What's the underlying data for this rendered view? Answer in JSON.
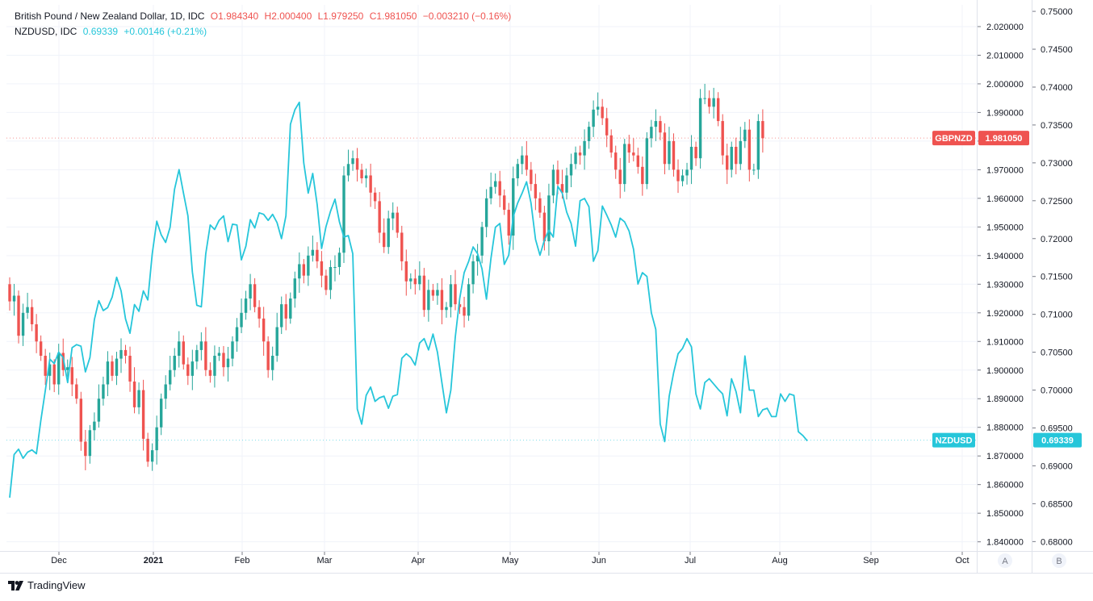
{
  "legend": {
    "line1": {
      "title": "British Pound / New Zealand Dollar, 1D, IDC",
      "o_label": "O",
      "o_value": "1.984340",
      "h_label": "H",
      "h_value": "2.000400",
      "l_label": "L",
      "l_value": "1.979250",
      "c_label": "C",
      "c_value": "1.981050",
      "change": "−0.003210 (−0.16%)"
    },
    "line2": {
      "title": "NZDUSD, IDC",
      "value": "0.69339",
      "change": "+0.00146 (+0.21%)"
    }
  },
  "brand": {
    "name": "TradingView"
  },
  "colors": {
    "up": "#26a69a",
    "down": "#ef5350",
    "line": "#26c6da",
    "grid": "#f0f3fa",
    "axis_text": "#131722"
  },
  "chart_data": {
    "type": "line",
    "title": "British Pound / New Zealand Dollar, 1D, IDC",
    "x_labels": [
      "Dec",
      "2021",
      "Feb",
      "Mar",
      "Apr",
      "May",
      "Jun",
      "Jul",
      "Aug",
      "Sep",
      "Oct"
    ],
    "axes": {
      "A": {
        "ticks": [
          "2.020000",
          "2.010000",
          "2.000000",
          "1.990000",
          "1.980000",
          "1.970000",
          "1.960000",
          "1.950000",
          "1.940000",
          "1.930000",
          "1.920000",
          "1.910000",
          "1.900000",
          "1.890000",
          "1.880000",
          "1.870000",
          "1.860000",
          "1.850000",
          "1.840000"
        ],
        "ylim": [
          1.8368,
          2.0276
        ],
        "badge": "A"
      },
      "B": {
        "ticks": [
          "0.75000",
          "0.74500",
          "0.74000",
          "0.73500",
          "0.73000",
          "0.72500",
          "0.72000",
          "0.71500",
          "0.71000",
          "0.70500",
          "0.70000",
          "0.69500",
          "0.69000",
          "0.68500",
          "0.68000"
        ],
        "ylim": [
          0.67876,
          0.75086
        ],
        "badge": "B"
      }
    },
    "series": [
      {
        "name": "GBPNZD",
        "kind": "candlestick",
        "axis": "A",
        "last_label": "GBPNZD",
        "last_value": "1.981050",
        "closes": [
          1.924,
          1.926,
          1.912,
          1.92,
          1.922,
          1.916,
          1.91,
          1.905,
          1.898,
          1.902,
          1.895,
          1.906,
          1.9,
          1.901,
          1.895,
          1.89,
          1.875,
          1.87,
          1.879,
          1.882,
          1.89,
          1.895,
          1.903,
          1.898,
          1.904,
          1.907,
          1.905,
          1.896,
          1.887,
          1.893,
          1.876,
          1.868,
          1.872,
          1.88,
          1.89,
          1.895,
          1.9,
          1.905,
          1.91,
          1.902,
          1.898,
          1.903,
          1.907,
          1.91,
          1.9,
          1.898,
          1.905,
          1.906,
          1.901,
          1.904,
          1.91,
          1.915,
          1.92,
          1.925,
          1.93,
          1.922,
          1.918,
          1.91,
          1.9,
          1.905,
          1.915,
          1.923,
          1.918,
          1.925,
          1.932,
          1.937,
          1.933,
          1.94,
          1.942,
          1.938,
          1.933,
          1.928,
          1.936,
          1.936,
          1.941,
          1.968,
          1.972,
          1.974,
          1.97,
          1.967,
          1.968,
          1.962,
          1.959,
          1.948,
          1.943,
          1.953,
          1.955,
          1.948,
          1.938,
          1.931,
          1.932,
          1.93,
          1.933,
          1.921,
          1.928,
          1.926,
          1.928,
          1.921,
          1.922,
          1.93,
          1.923,
          1.922,
          1.919,
          1.93,
          1.938,
          1.94,
          1.95,
          1.96,
          1.964,
          1.966,
          1.961,
          1.956,
          1.947,
          1.967,
          1.972,
          1.975,
          1.97,
          1.965,
          1.96,
          1.955,
          1.945,
          1.961,
          1.97,
          1.965,
          1.962,
          1.968,
          1.972,
          1.976,
          1.975,
          1.98,
          1.985,
          1.991,
          1.992,
          1.988,
          1.982,
          1.976,
          1.97,
          1.965,
          1.979,
          1.976,
          1.975,
          1.971,
          1.965,
          1.981,
          1.985,
          1.987,
          1.983,
          1.972,
          1.98,
          1.97,
          1.966,
          1.968,
          1.97,
          1.978,
          1.974,
          1.995,
          1.995,
          1.992,
          1.995,
          1.987,
          1.975,
          1.97,
          1.978,
          1.972,
          1.98,
          1.984,
          1.97,
          1.97,
          1.987,
          1.981
        ],
        "ohlc_note": "O 1.984340 H 2.000400 L 1.979250 C 1.981050 (last bar)"
      },
      {
        "name": "NZDUSD",
        "kind": "line",
        "axis": "B",
        "last_label": "NZDUSD",
        "last_value": "0.69339",
        "values": [
          0.6858,
          0.6915,
          0.6922,
          0.691,
          0.6918,
          0.6921,
          0.6916,
          0.696,
          0.7,
          0.7041,
          0.7035,
          0.705,
          0.7043,
          0.701,
          0.7056,
          0.706,
          0.7058,
          0.7024,
          0.7043,
          0.7093,
          0.7118,
          0.7105,
          0.7109,
          0.7123,
          0.7149,
          0.7131,
          0.7094,
          0.7075,
          0.7113,
          0.7104,
          0.7131,
          0.7119,
          0.718,
          0.7223,
          0.7205,
          0.7195,
          0.7215,
          0.7265,
          0.7291,
          0.726,
          0.723,
          0.7156,
          0.7112,
          0.711,
          0.718,
          0.7218,
          0.7212,
          0.7224,
          0.723,
          0.7196,
          0.7219,
          0.7218,
          0.7172,
          0.719,
          0.7225,
          0.7214,
          0.7234,
          0.7232,
          0.7224,
          0.7232,
          0.7221,
          0.72,
          0.723,
          0.7351,
          0.737,
          0.738,
          0.73,
          0.726,
          0.7286,
          0.7245,
          0.7187,
          0.7216,
          0.7236,
          0.7252,
          0.7222,
          0.7202,
          0.7204,
          0.718,
          0.6975,
          0.6955,
          0.6993,
          0.7004,
          0.6985,
          0.699,
          0.6992,
          0.6976,
          0.6992,
          0.6994,
          0.7042,
          0.7048,
          0.7043,
          0.7033,
          0.7062,
          0.7068,
          0.7053,
          0.7074,
          0.705,
          0.701,
          0.697,
          0.7,
          0.707,
          0.7121,
          0.7155,
          0.717,
          0.7189,
          0.718,
          0.716,
          0.712,
          0.7174,
          0.7215,
          0.722,
          0.7166,
          0.7178,
          0.7229,
          0.7247,
          0.726,
          0.7275,
          0.7247,
          0.7199,
          0.7178,
          0.7198,
          0.7211,
          0.7202,
          0.7269,
          0.726,
          0.7235,
          0.722,
          0.719,
          0.725,
          0.7253,
          0.7242,
          0.717,
          0.7184,
          0.7243,
          0.7231,
          0.7218,
          0.7202,
          0.7227,
          0.7222,
          0.721,
          0.7186,
          0.714,
          0.7155,
          0.715,
          0.7102,
          0.708,
          0.6955,
          0.6932,
          0.6992,
          0.7023,
          0.7048,
          0.7055,
          0.7068,
          0.7057,
          0.6995,
          0.6975,
          0.701,
          0.7015,
          0.7008,
          0.7001,
          0.6995,
          0.6966,
          0.7015,
          0.6998,
          0.697,
          0.7045,
          0.7,
          0.7,
          0.6965,
          0.6974,
          0.6976,
          0.6965,
          0.6965,
          0.6995,
          0.6985,
          0.6995,
          0.6993,
          0.6945,
          0.694,
          0.6933
        ],
        "color": "#26c6da"
      }
    ],
    "grid": true
  }
}
